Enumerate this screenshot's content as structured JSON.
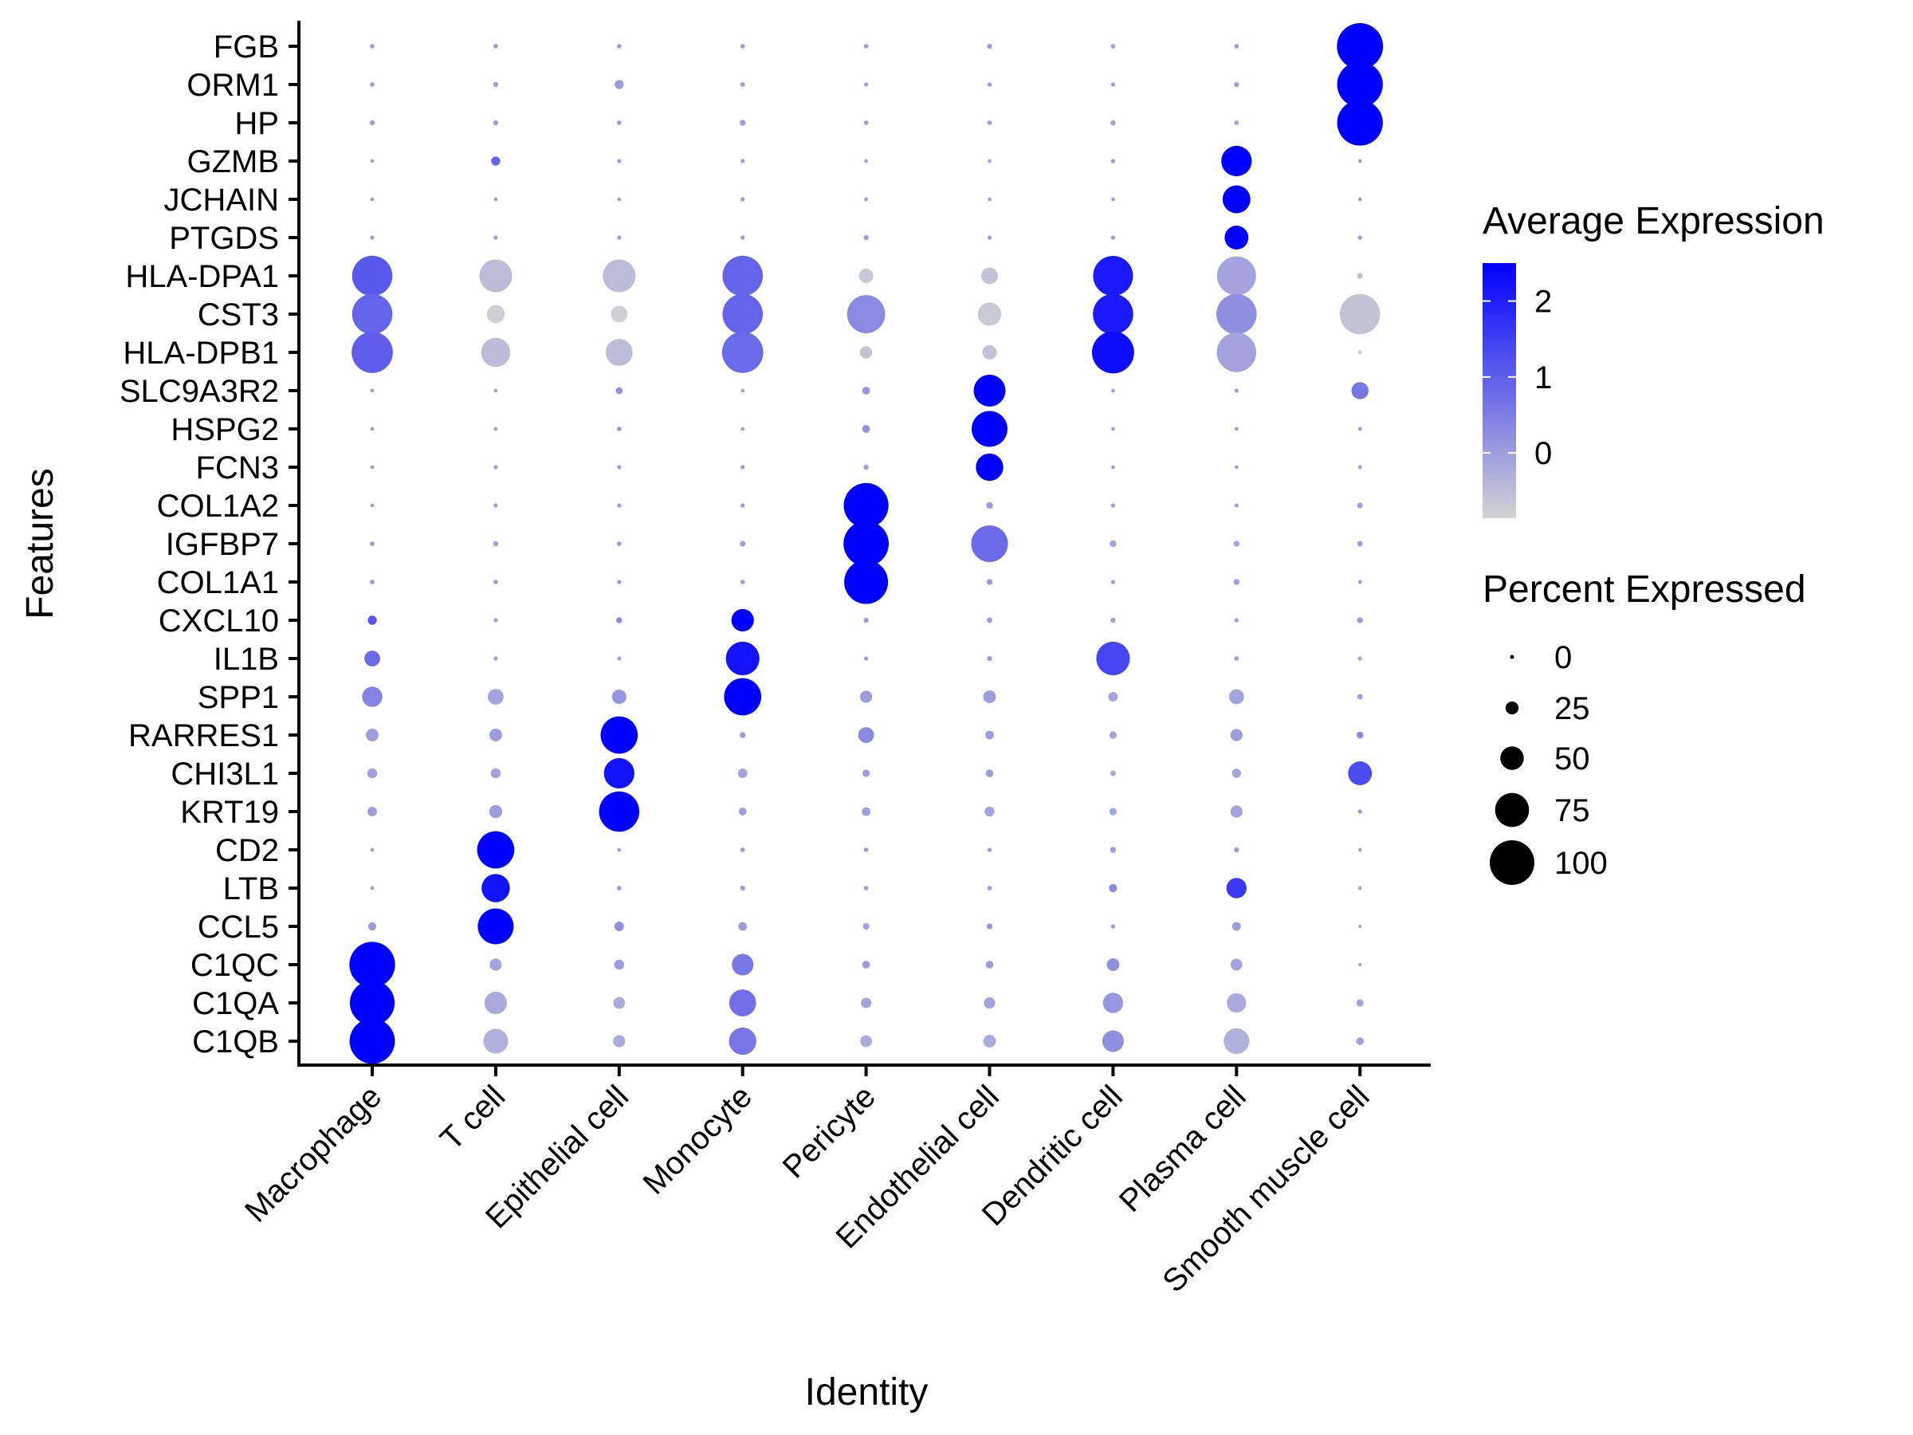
{
  "chart_data": {
    "type": "dotplot",
    "title": "",
    "xlabel": "Identity",
    "ylabel": "Features",
    "categories": [
      "Macrophage",
      "T cell",
      "Epithelial cell",
      "Monocyte",
      "Pericyte",
      "Endothelial cell",
      "Dendritic cell",
      "Plasma cell",
      "Smooth muscle cell"
    ],
    "features": [
      "FGB",
      "ORM1",
      "HP",
      "GZMB",
      "JCHAIN",
      "PTGDS",
      "HLA-DPA1",
      "CST3",
      "HLA-DPB1",
      "SLC9A3R2",
      "HSPG2",
      "FCN3",
      "COL1A2",
      "IGFBP7",
      "COL1A1",
      "CXCL10",
      "IL1B",
      "SPP1",
      "RARRES1",
      "CHI3L1",
      "KRT19",
      "CD2",
      "LTB",
      "CCL5",
      "C1QC",
      "C1QA",
      "C1QB"
    ],
    "percent_expressed": [
      [
        5,
        5,
        5,
        5,
        5,
        6,
        5,
        5,
        98
      ],
      [
        5,
        6,
        15,
        5,
        4,
        4,
        4,
        6,
        97
      ],
      [
        6,
        6,
        5,
        8,
        5,
        5,
        6,
        5,
        97
      ],
      [
        3,
        15,
        4,
        4,
        3,
        3,
        4,
        63,
        3
      ],
      [
        3,
        3,
        3,
        4,
        3,
        3,
        3,
        57,
        3
      ],
      [
        4,
        4,
        4,
        4,
        6,
        4,
        4,
        48,
        4
      ],
      [
        85,
        68,
        68,
        85,
        27,
        32,
        84,
        82,
        8
      ],
      [
        85,
        35,
        32,
        85,
        80,
        47,
        85,
        85,
        85
      ],
      [
        87,
        60,
        55,
        87,
        22,
        27,
        89,
        83,
        3
      ],
      [
        3,
        3,
        10,
        3,
        12,
        66,
        3,
        4,
        33
      ],
      [
        3,
        3,
        5,
        3,
        12,
        75,
        3,
        3,
        3
      ],
      [
        3,
        4,
        4,
        4,
        6,
        56,
        3,
        3,
        3
      ],
      [
        3,
        4,
        4,
        4,
        95,
        10,
        4,
        4,
        7
      ],
      [
        5,
        6,
        5,
        7,
        96,
        77,
        10,
        8,
        7
      ],
      [
        5,
        5,
        4,
        5,
        93,
        8,
        4,
        8,
        3
      ],
      [
        15,
        4,
        8,
        45,
        6,
        7,
        6,
        4,
        8
      ],
      [
        30,
        4,
        4,
        70,
        4,
        6,
        70,
        5,
        4
      ],
      [
        40,
        30,
        27,
        78,
        22,
        23,
        16,
        28,
        7
      ],
      [
        23,
        23,
        78,
        8,
        30,
        14,
        11,
        22,
        10
      ],
      [
        17,
        17,
        63,
        16,
        11,
        12,
        7,
        15,
        48
      ],
      [
        16,
        24,
        85,
        12,
        14,
        17,
        11,
        22,
        4
      ],
      [
        3,
        78,
        3,
        5,
        5,
        4,
        8,
        6,
        3
      ],
      [
        3,
        58,
        5,
        6,
        5,
        5,
        13,
        40,
        3
      ],
      [
        13,
        75,
        16,
        14,
        9,
        8,
        4,
        14,
        2
      ],
      [
        97,
        22,
        17,
        43,
        12,
        12,
        23,
        21,
        2
      ],
      [
        95,
        45,
        21,
        55,
        18,
        20,
        40,
        38,
        11
      ],
      [
        96,
        50,
        22,
        56,
        21,
        23,
        43,
        52,
        12
      ]
    ],
    "average_expression": [
      [
        0.0,
        0.0,
        0.0,
        0.0,
        0.0,
        0.0,
        0.0,
        0.0,
        2.5
      ],
      [
        0.0,
        0.0,
        0.0,
        0.0,
        0.0,
        0.0,
        0.0,
        0.0,
        2.5
      ],
      [
        0.0,
        0.0,
        0.0,
        0.0,
        0.0,
        0.0,
        0.0,
        0.0,
        2.5
      ],
      [
        0.0,
        0.9,
        0.0,
        0.0,
        0.0,
        0.0,
        0.0,
        2.5,
        0.0
      ],
      [
        0.0,
        0.0,
        0.0,
        0.0,
        0.0,
        0.0,
        0.0,
        2.5,
        0.0
      ],
      [
        0.0,
        0.0,
        0.0,
        0.0,
        0.0,
        0.0,
        0.0,
        2.5,
        0.0
      ],
      [
        1.1,
        -0.5,
        -0.5,
        0.9,
        -0.7,
        -0.6,
        2.1,
        -0.1,
        -0.6
      ],
      [
        0.9,
        -0.8,
        -0.8,
        0.9,
        0.3,
        -0.7,
        2.1,
        0.2,
        -0.6
      ],
      [
        1.0,
        -0.5,
        -0.5,
        0.8,
        -0.6,
        -0.6,
        2.3,
        -0.1,
        -0.6
      ],
      [
        0.0,
        0.0,
        0.2,
        0.0,
        0.1,
        2.5,
        0.0,
        0.0,
        0.6
      ],
      [
        0.0,
        0.0,
        0.0,
        0.0,
        0.2,
        2.5,
        0.0,
        0.0,
        0.0
      ],
      [
        0.0,
        0.0,
        0.0,
        0.0,
        0.0,
        2.5,
        0.0,
        0.0,
        0.0
      ],
      [
        0.0,
        0.0,
        0.0,
        0.0,
        2.5,
        0.0,
        0.0,
        0.0,
        0.0
      ],
      [
        0.0,
        0.0,
        0.0,
        0.0,
        2.5,
        0.8,
        -0.1,
        -0.1,
        0.0
      ],
      [
        0.0,
        0.0,
        0.0,
        0.0,
        2.5,
        0.0,
        0.0,
        0.0,
        0.0
      ],
      [
        1.1,
        0.0,
        0.2,
        2.5,
        0.0,
        0.0,
        0.0,
        0.0,
        0.0
      ],
      [
        0.8,
        0.0,
        -0.1,
        2.2,
        0.0,
        0.0,
        1.4,
        -0.1,
        -0.2
      ],
      [
        0.4,
        -0.1,
        0.1,
        2.5,
        0.0,
        0.0,
        -0.1,
        -0.1,
        -0.1
      ],
      [
        0.0,
        0.0,
        2.5,
        0.0,
        0.3,
        0.0,
        -0.1,
        0.0,
        0.3
      ],
      [
        -0.1,
        -0.1,
        2.2,
        -0.1,
        0.0,
        0.0,
        -0.2,
        -0.1,
        1.3
      ],
      [
        0.0,
        0.0,
        2.5,
        0.0,
        0.0,
        -0.1,
        -0.1,
        -0.1,
        0.0
      ],
      [
        0.0,
        2.5,
        0.0,
        0.0,
        0.0,
        0.0,
        0.0,
        0.0,
        0.0
      ],
      [
        0.0,
        2.2,
        0.0,
        0.0,
        0.0,
        0.0,
        0.3,
        1.6,
        0.0
      ],
      [
        0.0,
        2.5,
        0.2,
        0.0,
        0.0,
        0.0,
        0.0,
        0.0,
        0.0
      ],
      [
        2.5,
        -0.1,
        0.0,
        0.6,
        0.0,
        0.0,
        0.2,
        -0.1,
        0.0
      ],
      [
        2.5,
        -0.2,
        -0.2,
        0.7,
        -0.1,
        -0.1,
        0.1,
        -0.2,
        -0.1
      ],
      [
        2.5,
        -0.3,
        -0.2,
        0.6,
        -0.2,
        -0.2,
        0.2,
        -0.3,
        -0.1
      ]
    ],
    "color_legend": {
      "title": "Average Expression",
      "ticks": [
        2,
        1,
        0
      ],
      "range": [
        -0.86,
        2.5
      ],
      "low_color": "#D3D3D3",
      "high_color": "#0000FF"
    },
    "size_legend": {
      "title": "Percent Expressed",
      "values": [
        0,
        25,
        50,
        75,
        100
      ]
    },
    "legend_position": "right",
    "grid": false
  }
}
